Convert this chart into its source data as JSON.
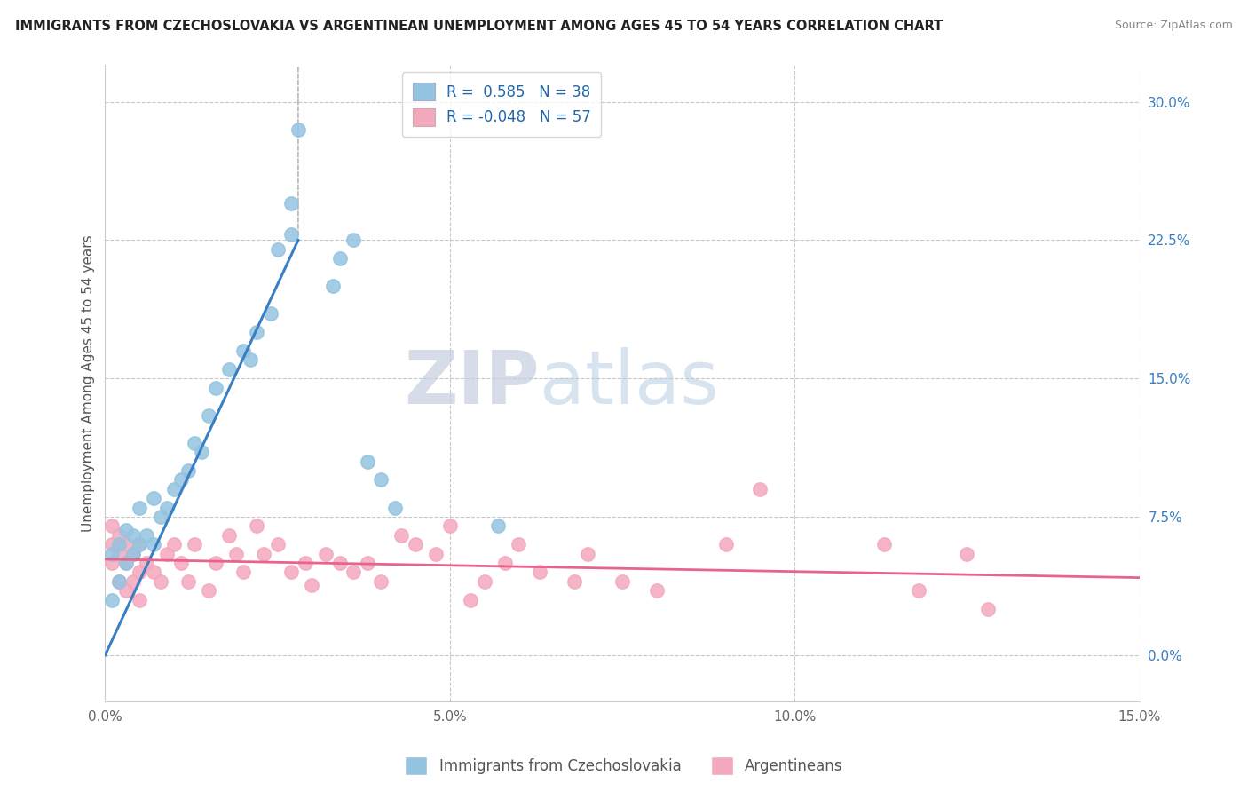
{
  "title": "IMMIGRANTS FROM CZECHOSLOVAKIA VS ARGENTINEAN UNEMPLOYMENT AMONG AGES 45 TO 54 YEARS CORRELATION CHART",
  "source": "Source: ZipAtlas.com",
  "ylabel": "Unemployment Among Ages 45 to 54 years",
  "xlim": [
    0.0,
    0.15
  ],
  "ylim": [
    -0.025,
    0.32
  ],
  "x_ticks": [
    0.0,
    0.05,
    0.1,
    0.15
  ],
  "x_tick_labels": [
    "0.0%",
    "5.0%",
    "10.0%",
    "15.0%"
  ],
  "y_ticks": [
    0.0,
    0.075,
    0.15,
    0.225,
    0.3
  ],
  "y_tick_labels": [
    "0.0%",
    "7.5%",
    "15.0%",
    "22.5%",
    "30.0%"
  ],
  "legend_r1": "R =  0.585",
  "legend_n1": "N = 38",
  "legend_r2": "R = -0.048",
  "legend_n2": "N = 57",
  "color_blue": "#94c4e0",
  "color_pink": "#f4a8be",
  "color_blue_line": "#3a7fc1",
  "color_pink_line": "#e8648a",
  "watermark_zip": "ZIP",
  "watermark_atlas": "atlas",
  "background_color": "#ffffff",
  "grid_color": "#c8c8c8",
  "blue_x": [
    0.001,
    0.001,
    0.002,
    0.002,
    0.003,
    0.003,
    0.004,
    0.004,
    0.005,
    0.005,
    0.006,
    0.007,
    0.007,
    0.008,
    0.009,
    0.01,
    0.011,
    0.012,
    0.013,
    0.014,
    0.015,
    0.016,
    0.018,
    0.02,
    0.021,
    0.022,
    0.024,
    0.025,
    0.027,
    0.027,
    0.028,
    0.033,
    0.034,
    0.036,
    0.038,
    0.04,
    0.042,
    0.057
  ],
  "blue_y": [
    0.03,
    0.055,
    0.04,
    0.06,
    0.05,
    0.068,
    0.055,
    0.065,
    0.06,
    0.08,
    0.065,
    0.06,
    0.085,
    0.075,
    0.08,
    0.09,
    0.095,
    0.1,
    0.115,
    0.11,
    0.13,
    0.145,
    0.155,
    0.165,
    0.16,
    0.175,
    0.185,
    0.22,
    0.228,
    0.245,
    0.285,
    0.2,
    0.215,
    0.225,
    0.105,
    0.095,
    0.08,
    0.07
  ],
  "pink_x": [
    0.001,
    0.001,
    0.001,
    0.002,
    0.002,
    0.002,
    0.003,
    0.003,
    0.003,
    0.004,
    0.004,
    0.005,
    0.005,
    0.005,
    0.006,
    0.007,
    0.008,
    0.009,
    0.01,
    0.011,
    0.012,
    0.013,
    0.015,
    0.016,
    0.018,
    0.019,
    0.02,
    0.022,
    0.023,
    0.025,
    0.027,
    0.029,
    0.03,
    0.032,
    0.034,
    0.036,
    0.038,
    0.04,
    0.043,
    0.045,
    0.048,
    0.05,
    0.053,
    0.055,
    0.058,
    0.06,
    0.063,
    0.068,
    0.07,
    0.075,
    0.08,
    0.09,
    0.095,
    0.113,
    0.118,
    0.125,
    0.128
  ],
  "pink_y": [
    0.05,
    0.06,
    0.07,
    0.04,
    0.055,
    0.065,
    0.035,
    0.05,
    0.06,
    0.04,
    0.055,
    0.03,
    0.045,
    0.06,
    0.05,
    0.045,
    0.04,
    0.055,
    0.06,
    0.05,
    0.04,
    0.06,
    0.035,
    0.05,
    0.065,
    0.055,
    0.045,
    0.07,
    0.055,
    0.06,
    0.045,
    0.05,
    0.038,
    0.055,
    0.05,
    0.045,
    0.05,
    0.04,
    0.065,
    0.06,
    0.055,
    0.07,
    0.03,
    0.04,
    0.05,
    0.06,
    0.045,
    0.04,
    0.055,
    0.04,
    0.035,
    0.06,
    0.09,
    0.06,
    0.035,
    0.055,
    0.025
  ],
  "blue_line_x0": 0.0,
  "blue_line_y0": 0.0,
  "blue_line_x1": 0.028,
  "blue_line_y1": 0.225,
  "pink_line_x0": 0.0,
  "pink_line_y0": 0.052,
  "pink_line_x1": 0.15,
  "pink_line_y1": 0.042
}
